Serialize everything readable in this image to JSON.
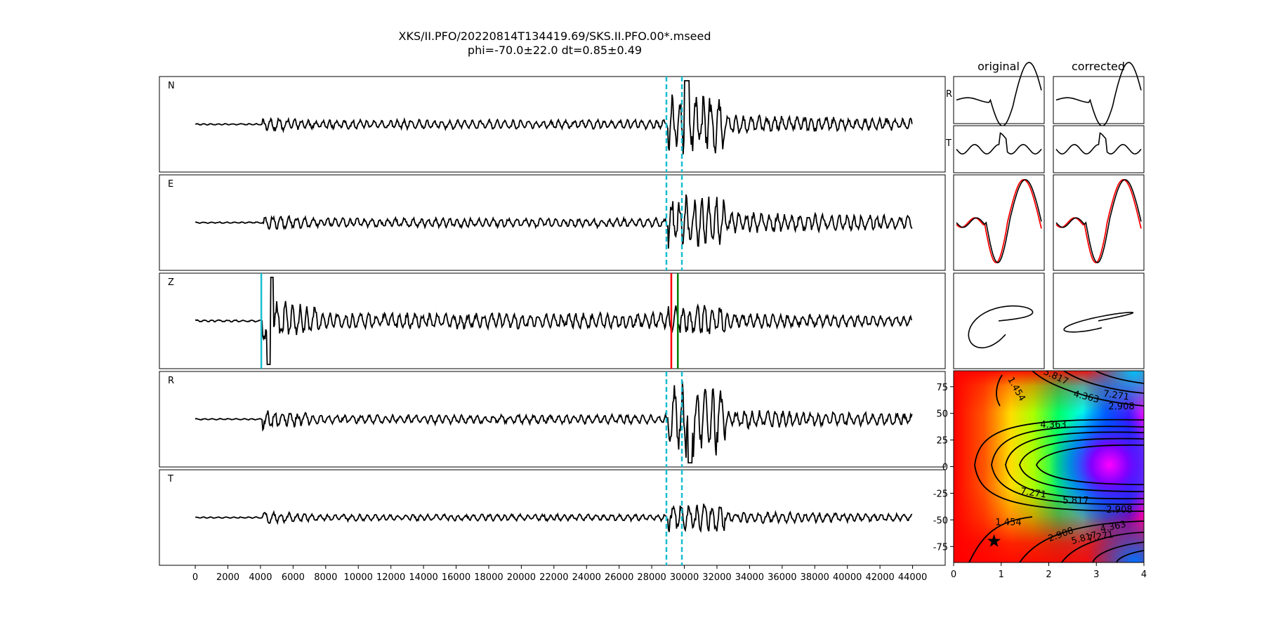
{
  "title_line1": "XKS/II.PFO/20220814T134419.69/SKS.II.PFO.00*.mseed",
  "title_line2": "phi=-70.0±22.0 dt=0.85±0.49",
  "colors": {
    "trace": "#000000",
    "window_marker": "#17becf",
    "z_marker_cyan": "#17becf",
    "z_marker_red": "#ff0000",
    "z_marker_green": "#008000",
    "particle_reference": "#ff0000"
  },
  "chart_data": [
    {
      "type": "line",
      "name": "seismograms",
      "panels": [
        "N",
        "E",
        "Z",
        "R",
        "T"
      ],
      "xlim": [
        -2200,
        46000
      ],
      "xticks": [
        0,
        2000,
        4000,
        6000,
        8000,
        10000,
        12000,
        14000,
        16000,
        18000,
        20000,
        22000,
        24000,
        26000,
        28000,
        30000,
        32000,
        34000,
        36000,
        38000,
        40000,
        42000,
        44000
      ],
      "trace_range": [
        0,
        44000
      ],
      "window_markers": [
        28900,
        29850
      ],
      "z_markers": [
        4050,
        29200,
        29600
      ],
      "onset_samples": [
        4100,
        29000
      ],
      "grid": false
    },
    {
      "type": "line",
      "name": "waveform-insets",
      "column_titles": [
        "original",
        "corrected"
      ],
      "row_labels": [
        "R",
        "T"
      ]
    },
    {
      "type": "heatmap",
      "name": "energy-grid",
      "xlim": [
        0,
        4
      ],
      "ylim": [
        -90,
        90
      ],
      "xticks": [
        0,
        1,
        2,
        3,
        4
      ],
      "yticks": [
        75,
        50,
        25,
        0,
        -25,
        -50,
        -75
      ],
      "contour_labels": [
        "1.454",
        "5.817",
        "4.363",
        "7.271",
        "2.908",
        "4.363",
        "7.271",
        "5.817",
        "2.908",
        "1.454",
        "2.908",
        "5.817",
        "4.363",
        "7.271"
      ],
      "best_fit": {
        "dt": 0.85,
        "phi": -70.0
      },
      "colormap": "hsv"
    }
  ]
}
